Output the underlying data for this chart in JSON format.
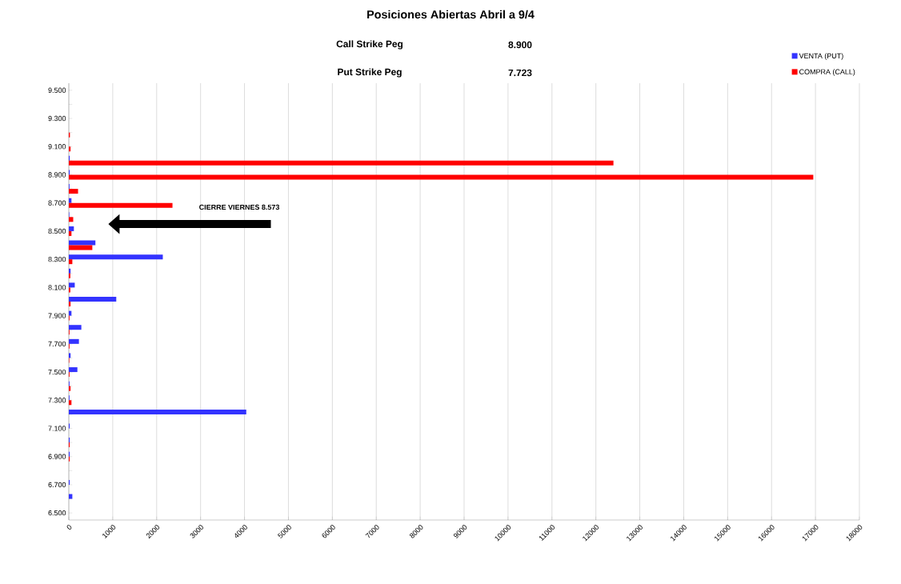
{
  "chart_data": {
    "type": "bar",
    "orientation": "horizontal",
    "title": "Posiciones Abiertas Abril a 9/4",
    "annotations": [
      "Call Strike Peg",
      "8.900",
      "Put Strike Peg",
      "7.723",
      "CIERRE VIERNES 8.573"
    ],
    "categories": [
      "9.500",
      null,
      "9.300",
      null,
      "9.100",
      null,
      "8.900",
      null,
      "8.700",
      null,
      "8.500",
      null,
      "8.300",
      null,
      "8.100",
      null,
      "7.900",
      null,
      "7.700",
      null,
      "7.500",
      null,
      "7.300",
      null,
      "7.100",
      null,
      "6.900",
      null,
      "6.700",
      null,
      "6.500"
    ],
    "series": [
      {
        "name": "VENTA (PUT)",
        "color": "#3333ff",
        "values": [
          0,
          0,
          0,
          0,
          0,
          20,
          20,
          15,
          60,
          10,
          115,
          605,
          2140,
          40,
          135,
          1080,
          60,
          285,
          230,
          40,
          195,
          15,
          15,
          4040,
          20,
          20,
          20,
          0,
          20,
          80,
          0
        ]
      },
      {
        "name": "COMPRA (CALL)",
        "color": "#ff0000",
        "values": [
          0,
          0,
          0,
          25,
          40,
          12400,
          16950,
          210,
          2360,
          100,
          60,
          535,
          80,
          35,
          35,
          40,
          15,
          15,
          15,
          10,
          15,
          40,
          60,
          0,
          0,
          20,
          20,
          0,
          0,
          0,
          0
        ]
      }
    ],
    "xlim": [
      0,
      18000
    ],
    "xticks": [
      0,
      1000,
      2000,
      3000,
      4000,
      5000,
      6000,
      7000,
      8000,
      9000,
      10000,
      11000,
      12000,
      13000,
      14000,
      15000,
      16000,
      17000,
      18000
    ],
    "grid": "x",
    "legend": "top right"
  }
}
